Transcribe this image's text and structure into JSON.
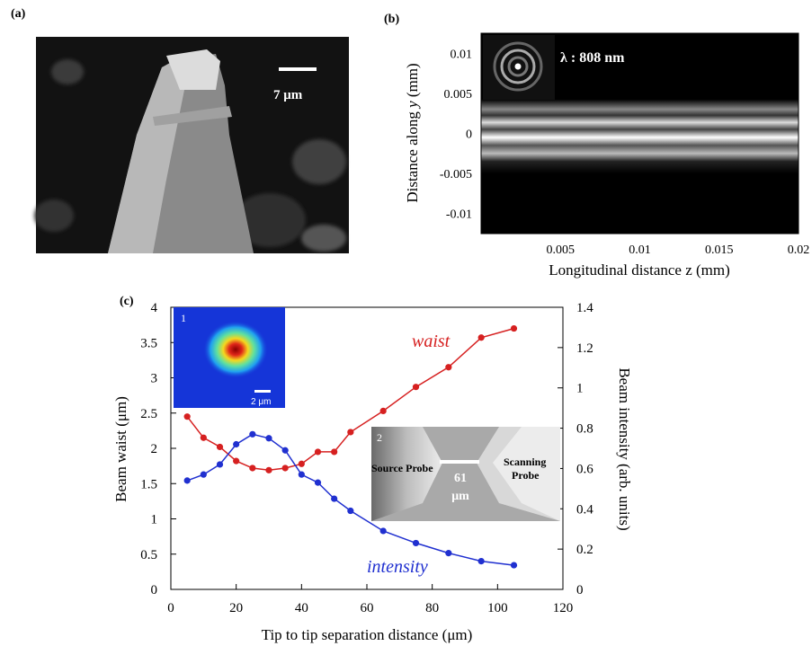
{
  "panels": {
    "a": {
      "label": "(a)",
      "scale_bar": "7 μm"
    },
    "b": {
      "label": "(b)",
      "wavelength": "λ : 808 nm",
      "xlabel": "Longitudinal distance z (mm)",
      "ylabel_prefix": "Distance along ",
      "ylabel_var": "y",
      "ylabel_suffix": " (mm)",
      "xticks": [
        "0.005",
        "0.01",
        "0.015",
        "0.02"
      ],
      "xtick_values": [
        0.005,
        0.01,
        0.015,
        0.02
      ],
      "yticks": [
        "0.01",
        "0.005",
        "0",
        "-0.005",
        "-0.01"
      ],
      "ytick_values": [
        0.01,
        0.005,
        0,
        -0.005,
        -0.01
      ],
      "xlim": [
        0,
        0.02
      ],
      "ylim": [
        -0.0125,
        0.0125
      ]
    },
    "c": {
      "label": "(c)",
      "inset1": {
        "index": "1",
        "scale_bar": "2 μm"
      },
      "inset2": {
        "index": "2",
        "source": "Source Probe",
        "scanning_line1": "Scanning",
        "scanning_line2": "Probe",
        "gap_value": "61",
        "gap_unit": "μm"
      },
      "series_labels": {
        "waist": "waist",
        "intensity": "intensity"
      }
    }
  },
  "chart_data": {
    "type": "line",
    "xlabel": "Tip to tip separation distance  (μm)",
    "ylabel": "Beam waist (μm)",
    "y2label": "Beam intensity (arb. units)",
    "xlim": [
      0,
      120
    ],
    "ylim": [
      0,
      4
    ],
    "y2lim": [
      0,
      1.4
    ],
    "xticks": [
      "0",
      "20",
      "40",
      "60",
      "80",
      "100",
      "120"
    ],
    "yticks": [
      "0",
      "0.5",
      "1",
      "1.5",
      "2",
      "2.5",
      "3",
      "3.5",
      "4"
    ],
    "y2ticks": [
      "0",
      "0.2",
      "0.4",
      "0.6",
      "0.8",
      "1",
      "1.2",
      "1.4"
    ],
    "x": [
      5,
      10,
      15,
      20,
      25,
      30,
      35,
      40,
      45,
      50,
      55,
      65,
      75,
      85,
      95,
      105
    ],
    "series": [
      {
        "name": "waist",
        "axis": "left",
        "color": "#d62020",
        "x": [
          5,
          10,
          15,
          20,
          25,
          30,
          35,
          40,
          45,
          50,
          55,
          65,
          75,
          85,
          95,
          105
        ],
        "values": [
          2.45,
          2.15,
          2.02,
          1.82,
          1.72,
          1.69,
          1.72,
          1.78,
          1.95,
          1.95,
          2.23,
          2.53,
          2.87,
          3.15,
          3.57,
          3.7
        ]
      },
      {
        "name": "intensity",
        "axis": "right",
        "color": "#2030d0",
        "x": [
          5,
          10,
          15,
          20,
          25,
          30,
          35,
          40,
          45,
          50,
          55,
          65,
          75,
          85,
          95,
          105
        ],
        "values": [
          0.54,
          0.57,
          0.62,
          0.72,
          0.77,
          0.75,
          0.69,
          0.57,
          0.53,
          0.45,
          0.39,
          0.29,
          0.23,
          0.18,
          0.14,
          0.12
        ]
      }
    ]
  }
}
